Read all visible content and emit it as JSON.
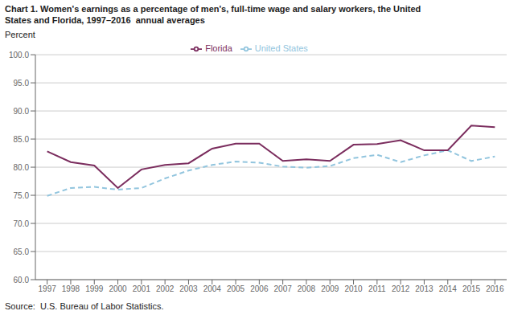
{
  "chart_data": {
    "type": "line",
    "title": "Chart 1. Women's earnings as a percentage of men's, full-time wage and salary workers, the United\nStates and Florida, 1997–2016  annual averages",
    "y_label": "Percent",
    "annotations": [
      "Source:  U.S. Bureau of Labor Statistics."
    ],
    "x": [
      1997,
      1998,
      1999,
      2000,
      2001,
      2002,
      2003,
      2004,
      2005,
      2006,
      2007,
      2008,
      2009,
      2010,
      2011,
      2012,
      2013,
      2014,
      2015,
      2016
    ],
    "series": [
      {
        "name": "United States",
        "color": "#92C5DE",
        "line_style": "dashed",
        "values": [
          74.9,
          76.3,
          76.5,
          76.0,
          76.3,
          78.0,
          79.4,
          80.4,
          81.0,
          80.8,
          80.1,
          79.9,
          80.2,
          81.6,
          82.2,
          80.9,
          82.1,
          83.0,
          81.1,
          81.9
        ]
      },
      {
        "name": "Florida",
        "color": "#7B2D5E",
        "line_style": "solid",
        "values": [
          82.8,
          80.9,
          80.3,
          76.3,
          79.6,
          80.4,
          80.7,
          83.3,
          84.2,
          84.2,
          81.1,
          81.4,
          81.1,
          84.0,
          84.1,
          84.8,
          83.0,
          83.0,
          87.4,
          87.1
        ]
      }
    ],
    "xlim": [
      1996.5,
      2016.5
    ],
    "xticks": [
      1997,
      1998,
      1999,
      2000,
      2001,
      2002,
      2003,
      2004,
      2005,
      2006,
      2007,
      2008,
      2009,
      2010,
      2011,
      2012,
      2013,
      2014,
      2015,
      2016
    ],
    "ylim": [
      60,
      100
    ],
    "yticks": [
      {
        "value": 60,
        "label": "60.0"
      },
      {
        "value": 65,
        "label": "65.0"
      },
      {
        "value": 70,
        "label": "70.0"
      },
      {
        "value": 75,
        "label": "75.0"
      },
      {
        "value": 80,
        "label": "80.0"
      },
      {
        "value": 85,
        "label": "85.0"
      },
      {
        "value": 90,
        "label": "90.0"
      },
      {
        "value": 95,
        "label": "95.0"
      },
      {
        "value": 100,
        "label": "100.0"
      }
    ],
    "grid": true,
    "legend": "top"
  }
}
